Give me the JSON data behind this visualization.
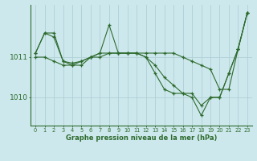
{
  "xlabel": "Graphe pression niveau de la mer (hPa)",
  "bg_color": "#cde8ec",
  "grid_color": "#afd0d6",
  "line_color": "#2d6a2d",
  "text_color": "#2d6a2d",
  "yticks": [
    1010,
    1011
  ],
  "ylim": [
    1009.3,
    1012.3
  ],
  "xlim": [
    -0.5,
    23.5
  ],
  "series": [
    [
      1011.1,
      1011.6,
      1011.6,
      1010.9,
      1010.8,
      1010.8,
      1011.0,
      1011.1,
      1011.1,
      1011.1,
      1011.1,
      1011.1,
      1011.1,
      1011.1,
      1011.1,
      1011.1,
      1011.0,
      1010.9,
      1010.8,
      1010.7,
      1010.2,
      1010.2,
      1011.2,
      1012.1
    ],
    [
      1011.0,
      1011.0,
      1010.9,
      1010.8,
      1010.8,
      1010.9,
      1011.0,
      1011.0,
      1011.1,
      1011.1,
      1011.1,
      1011.1,
      1011.0,
      1010.8,
      1010.5,
      1010.3,
      1010.1,
      1010.1,
      1009.8,
      1010.0,
      1010.0,
      1010.6,
      1011.2,
      1012.1
    ],
    [
      1011.1,
      1011.6,
      1011.5,
      1010.9,
      1010.85,
      1010.9,
      1011.0,
      1011.1,
      1011.8,
      1011.1,
      1011.1,
      1011.1,
      1011.0,
      1010.6,
      1010.2,
      1010.1,
      1010.1,
      1010.0,
      1009.55,
      1010.0,
      1010.0,
      1010.6,
      1011.2,
      1012.1
    ]
  ]
}
